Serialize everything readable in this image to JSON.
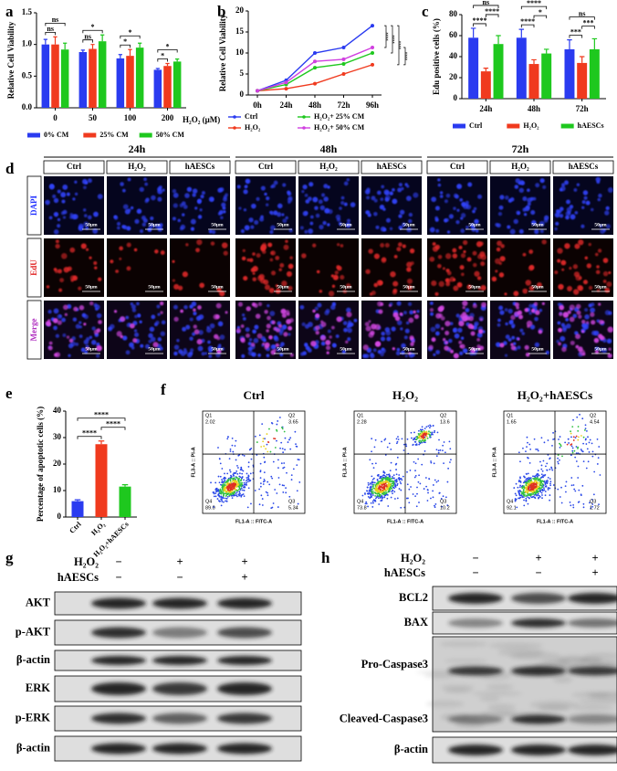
{
  "panel_labels": [
    "a",
    "b",
    "c",
    "d",
    "e",
    "f",
    "g",
    "h"
  ],
  "chart_data": [
    {
      "type": "bar",
      "y_label": "Relative Cell Viability",
      "x_label": "H₂O₂ (μM)",
      "categories": [
        "0",
        "50",
        "100",
        "200"
      ],
      "series": [
        {
          "name": "0% CM",
          "color": "#2a3bf0",
          "values": [
            1.0,
            0.88,
            0.78,
            0.6
          ],
          "errors": [
            0.08,
            0.03,
            0.06,
            0.02
          ]
        },
        {
          "name": "25% CM",
          "color": "#f03a1e",
          "values": [
            1.0,
            0.93,
            0.82,
            0.66
          ],
          "errors": [
            0.12,
            0.07,
            0.1,
            0.04
          ]
        },
        {
          "name": "50% CM",
          "color": "#1ec81e",
          "values": [
            0.92,
            1.05,
            0.95,
            0.73
          ],
          "errors": [
            0.1,
            0.1,
            0.07,
            0.04
          ]
        }
      ],
      "ylim": [
        0,
        1.5
      ],
      "yticks": [
        {
          "value": 0,
          "label": "0.0"
        },
        0.5,
        {
          "value": 1,
          "label": "1.0"
        },
        1.5
      ],
      "significance": [
        [
          "ns",
          "ns"
        ],
        [
          "ns",
          "*"
        ],
        [
          "*",
          "*"
        ],
        [
          "*",
          "*"
        ]
      ]
    },
    {
      "type": "line",
      "y_label": "Relative Cell Viability",
      "categories": [
        "0h",
        "24h",
        "48h",
        "72h",
        "96h"
      ],
      "series": [
        {
          "name": "Ctrl",
          "color": "#2a3bf0",
          "values": [
            1,
            3.5,
            10,
            11.3,
            16.5
          ]
        },
        {
          "name": "H₂O₂",
          "color": "#f03a1e",
          "values": [
            1,
            1.5,
            2.7,
            5,
            7.2
          ]
        },
        {
          "name": "H₂O₂+ 25% CM",
          "color": "#1ec81e",
          "values": [
            1,
            2.5,
            6.5,
            7.4,
            10
          ]
        },
        {
          "name": "H₂O₂+ 50% CM",
          "color": "#d040e0",
          "values": [
            1,
            3,
            8,
            8.5,
            11.3
          ]
        }
      ],
      "ylim": [
        0,
        20
      ],
      "yticks": [
        0,
        5,
        10,
        15,
        20
      ],
      "significance": [
        "****",
        "****",
        "****",
        "****"
      ]
    },
    {
      "type": "bar",
      "y_label": "Edu positive cells (%)",
      "categories": [
        "24h",
        "48h",
        "72h"
      ],
      "series": [
        {
          "name": "Ctrl",
          "color": "#2a3bf0",
          "values": [
            58,
            58,
            47
          ],
          "errors": [
            9,
            8,
            9
          ]
        },
        {
          "name": "H₂O₂",
          "color": "#f03a1e",
          "values": [
            26,
            33,
            34
          ],
          "errors": [
            3,
            4,
            6
          ]
        },
        {
          "name": "hAESCs",
          "color": "#1ec81e",
          "values": [
            52,
            43,
            47
          ],
          "errors": [
            8,
            4,
            10
          ]
        }
      ],
      "ylim": [
        0,
        80
      ],
      "yticks": [
        0,
        20,
        40,
        60,
        80
      ],
      "significance": [
        [
          "ns",
          "****",
          "****"
        ],
        [
          "****",
          "****",
          "*"
        ],
        [
          "ns",
          "***",
          "***"
        ]
      ]
    },
    {
      "type": "bar",
      "y_label": "Percentage of apoptotic cells (%)",
      "categories": [
        "Ctrl",
        "H₂O₂",
        "H₂O₂+hAESCs"
      ],
      "values": [
        6,
        27.5,
        11.5
      ],
      "errors": [
        0.5,
        1.2,
        0.7
      ],
      "colors": [
        "#2a3bf0",
        "#f03a1e",
        "#1ec81e"
      ],
      "ylim": [
        0,
        40
      ],
      "yticks": [
        0,
        10,
        20,
        30,
        40
      ],
      "significance": [
        "****",
        "****",
        "****"
      ]
    }
  ],
  "edu_imaging": {
    "time_points": [
      "24h",
      "48h",
      "72h"
    ],
    "groups": [
      "Ctrl",
      "H₂O₂",
      "hAESCs"
    ],
    "stains": [
      "DAPI",
      "EdU",
      "Merge"
    ],
    "scale_bar": "50μm"
  },
  "flow_cytometry": {
    "x_label": "FL1-A :: FITC-A",
    "y_label": "FL3-A :: PI-A",
    "plots": [
      {
        "title": "Ctrl",
        "quadrants": [
          {
            "name": "Q1",
            "value": "2.02"
          },
          {
            "name": "Q2",
            "value": "3.65"
          },
          {
            "name": "Q3",
            "value": "5.34"
          },
          {
            "name": "Q4",
            "value": "89.0"
          }
        ]
      },
      {
        "title": "H₂O₂",
        "quadrants": [
          {
            "name": "Q1",
            "value": "2.28"
          },
          {
            "name": "Q2",
            "value": "13.6"
          },
          {
            "name": "Q3",
            "value": "10.2"
          },
          {
            "name": "Q4",
            "value": "73.8"
          }
        ]
      },
      {
        "title": "H₂O₂+hAESCs",
        "quadrants": [
          {
            "name": "Q1",
            "value": "1.65"
          },
          {
            "name": "Q2",
            "value": "4.54"
          },
          {
            "name": "Q3",
            "value": "1.72"
          },
          {
            "name": "Q4",
            "value": "92.1"
          }
        ]
      }
    ]
  },
  "western_blot_g": {
    "treatments": [
      {
        "name": "H₂O₂",
        "signs": [
          "−",
          "+",
          "+"
        ]
      },
      {
        "name": "hAESCs",
        "signs": [
          "−",
          "−",
          "+"
        ]
      }
    ],
    "blots": [
      [
        "AKT"
      ],
      [
        "p-AKT"
      ],
      [
        "β-actin"
      ],
      [
        "ERK"
      ],
      [
        "p-ERK"
      ],
      [
        "β-actin"
      ]
    ]
  },
  "western_blot_h": {
    "treatments": [
      {
        "name": "H₂O₂",
        "signs": [
          "−",
          "+",
          "+"
        ]
      },
      {
        "name": "hAESCs",
        "signs": [
          "−",
          "−",
          "+"
        ]
      }
    ],
    "blots": [
      [
        "BCL2"
      ],
      [
        "BAX"
      ],
      [
        "Pro-Caspase3",
        "Cleaved-Caspase3"
      ],
      [
        "β-actin"
      ]
    ]
  }
}
